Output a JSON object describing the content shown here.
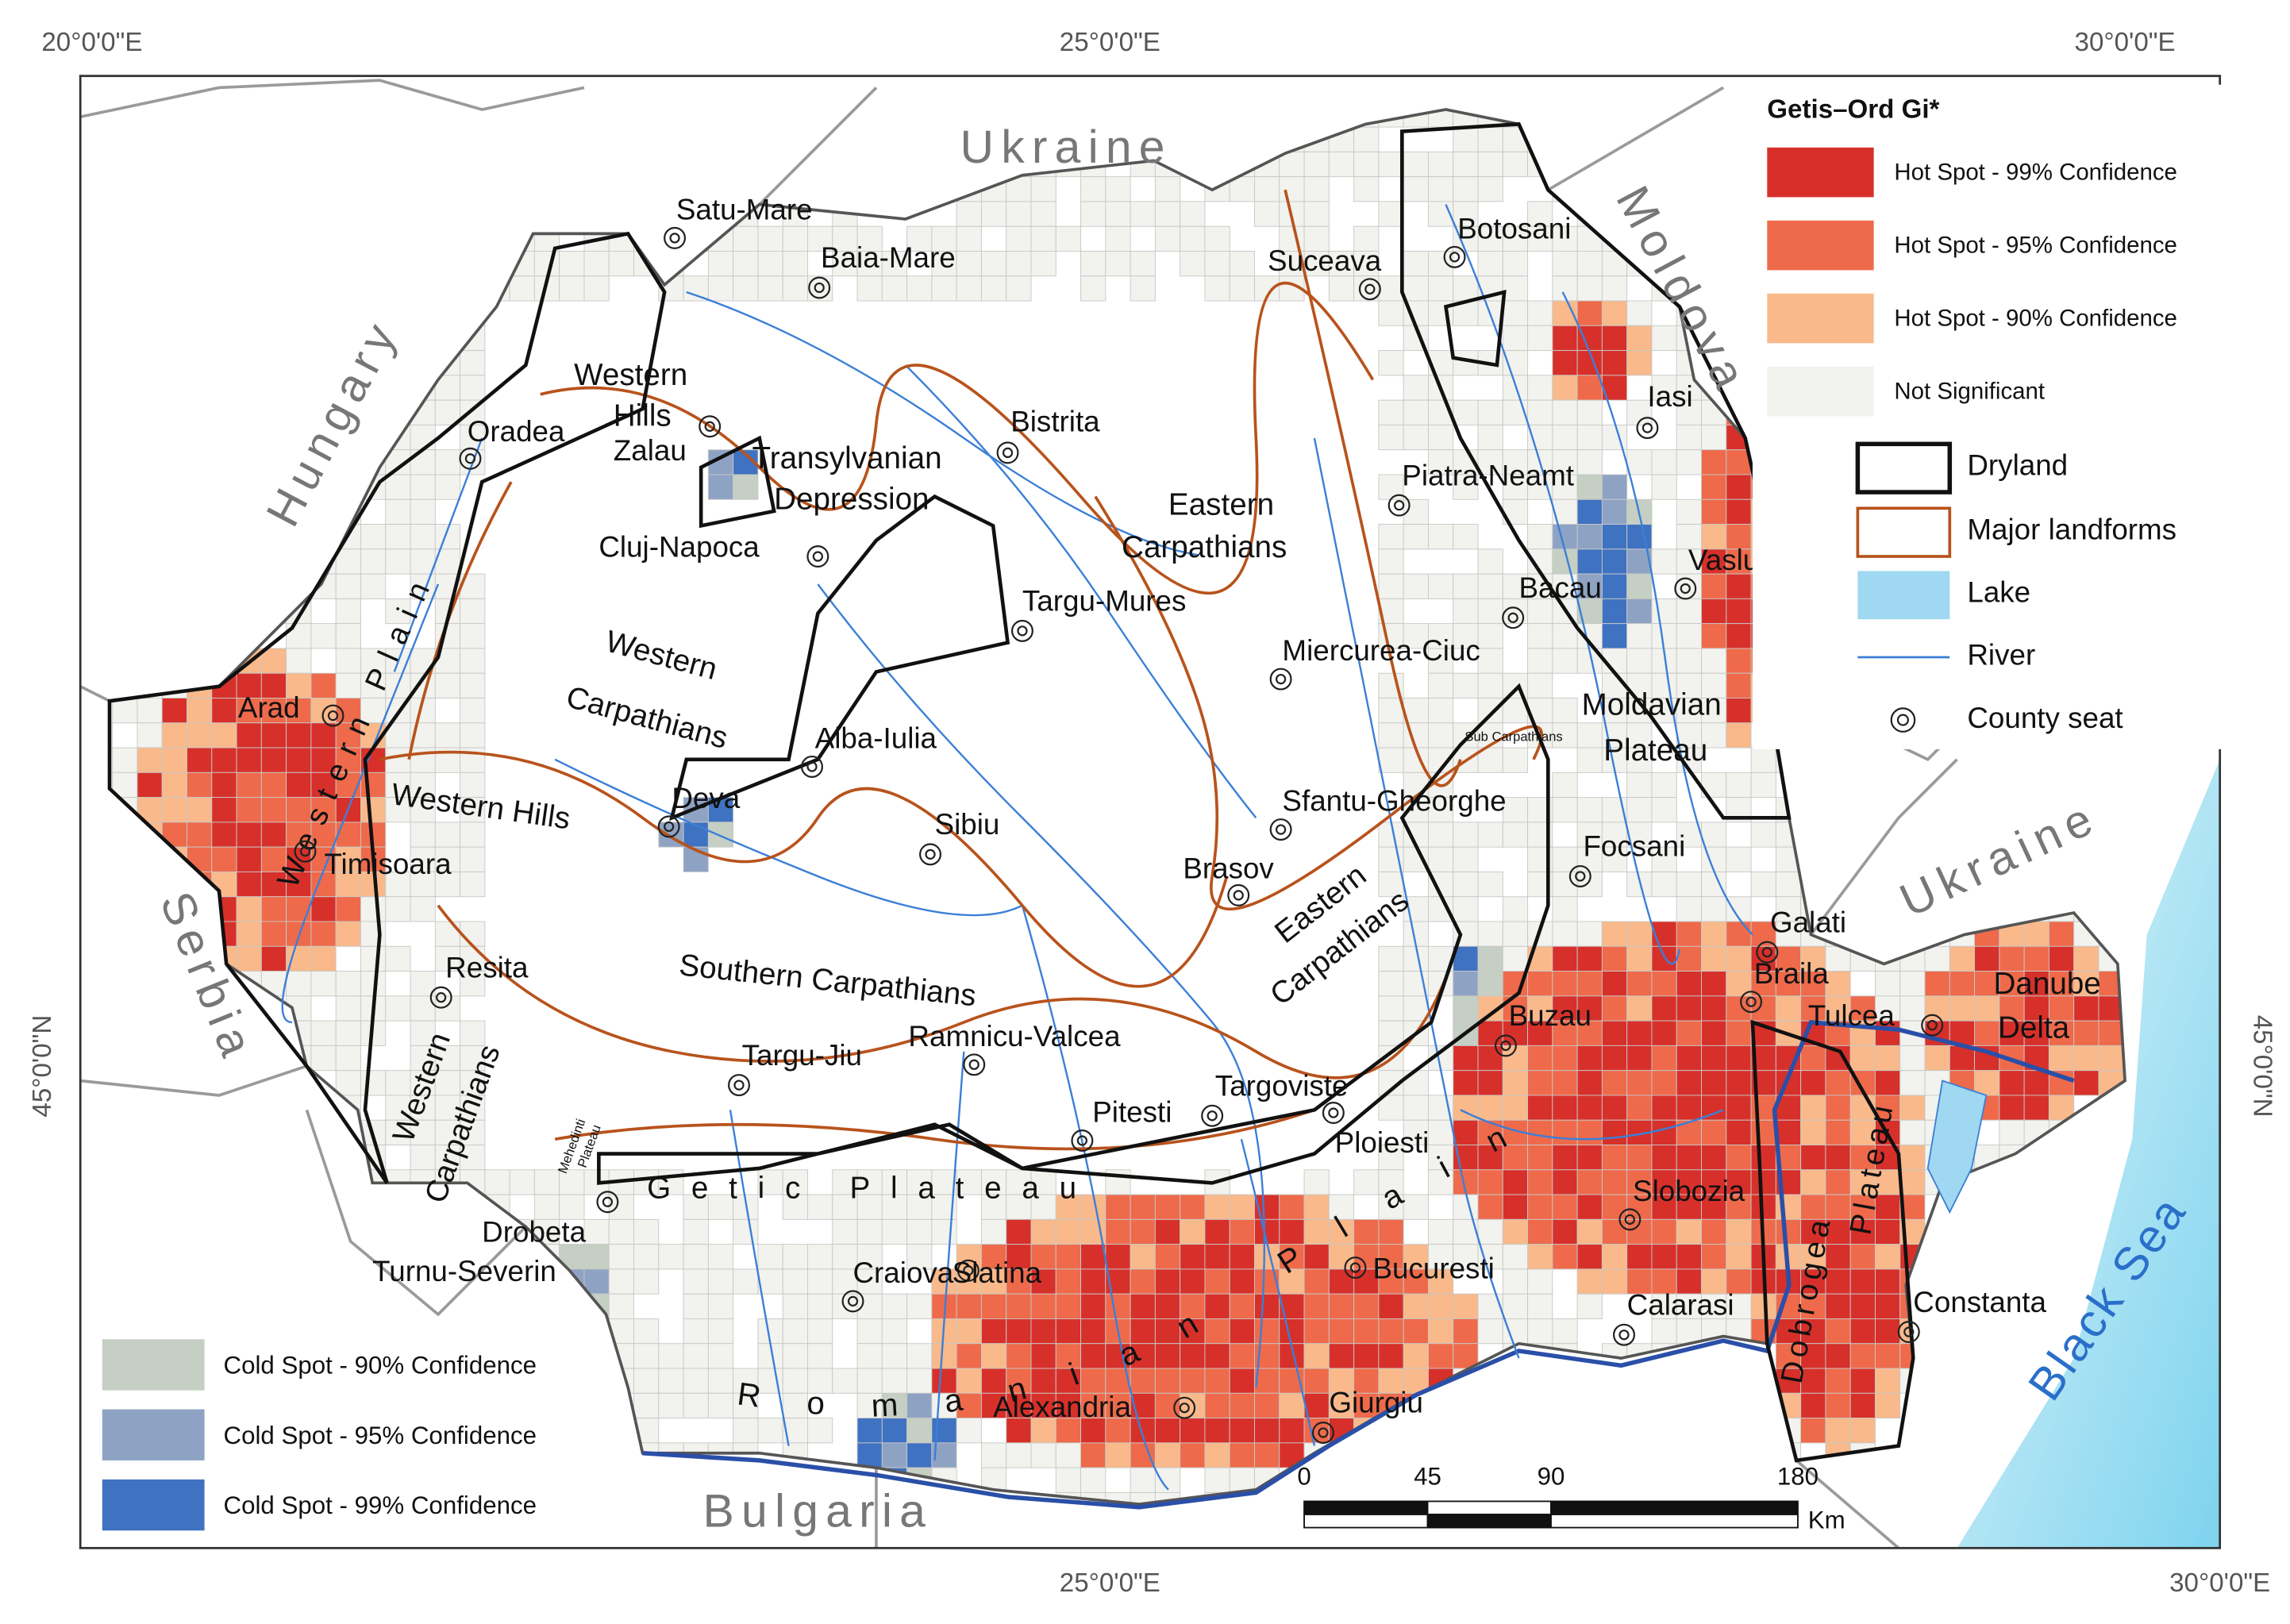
{
  "graticule": {
    "top": [
      "20°0'0\"E",
      "25°0'0\"E",
      "30°0'0\"E"
    ],
    "bottom": [
      "25°0'0\"E",
      "30°0'0\"E"
    ],
    "left": [
      "45°0'0\"N"
    ],
    "right": [
      "45°0'0\"N"
    ]
  },
  "countries": [
    "Ukraine",
    "Moldova",
    "Hungary",
    "Serbia",
    "Bulgaria",
    "Ukraine"
  ],
  "sea": "Black Sea",
  "county_seats": [
    "Satu-Mare",
    "Baia-Mare",
    "Oradea",
    "Zalau",
    "Bistrita",
    "Cluj-Napoca",
    "Targu-Mures",
    "Suceava",
    "Botosani",
    "Iasi",
    "Piatra-Neamt",
    "Bacau",
    "Vaslui",
    "Miercurea-Ciuc",
    "Arad",
    "Alba-Iulia",
    "Deva",
    "Timisoara",
    "Sibiu",
    "Sfantu-Gheorghe",
    "Brasov",
    "Focsani",
    "Galati",
    "Braila",
    "Tulcea",
    "Resita",
    "Buzau",
    "Targu-Jiu",
    "Ramnicu-Valcea",
    "Pitesti",
    "Targoviste",
    "Ploiesti",
    "Slobozia",
    [
      "Drobeta",
      "Turnu-Severin"
    ],
    "Craiova",
    "Slatina",
    "Bucuresti",
    "Calarasi",
    "Constanta",
    "Alexandria",
    "Giurgiu"
  ],
  "landforms": [
    [
      "Western",
      "Hills"
    ],
    [
      "Transylvanian",
      "Depression"
    ],
    [
      "Eastern",
      "Carpathians"
    ],
    [
      "Western",
      "Carpathians"
    ],
    [
      "Western Hills"
    ],
    [
      "Southern Carpathians"
    ],
    [
      "Eastern",
      "Carpathians"
    ],
    [
      "Western",
      "Carpathians"
    ],
    [
      "Western Plain"
    ],
    [
      "Moldavian",
      "Plateau"
    ],
    [
      "Getic Plateau"
    ],
    [
      "Romanian Plain"
    ],
    [
      "Dobrogea",
      "Plateau"
    ],
    [
      "Danube",
      "Delta"
    ],
    [
      "Mehedinti",
      "Plateau"
    ],
    [
      "Sub Carpathians"
    ]
  ],
  "legend": {
    "title": "Getis–Ord Gi*",
    "hot_spots": [
      "Hot Spot - 99% Confidence",
      "Hot Spot - 95% Confidence",
      "Hot Spot - 90% Confidence",
      "Not Significant"
    ],
    "features": [
      "Dryland",
      "Major landforms",
      "Lake",
      "River",
      "County seat"
    ],
    "cold_spots": [
      "Cold Spot - 90% Confidence",
      "Cold Spot - 95% Confidence",
      "Cold Spot - 99% Confidence"
    ]
  },
  "scale_bar": {
    "ticks": [
      0,
      45,
      90,
      180
    ],
    "unit": "Km"
  }
}
